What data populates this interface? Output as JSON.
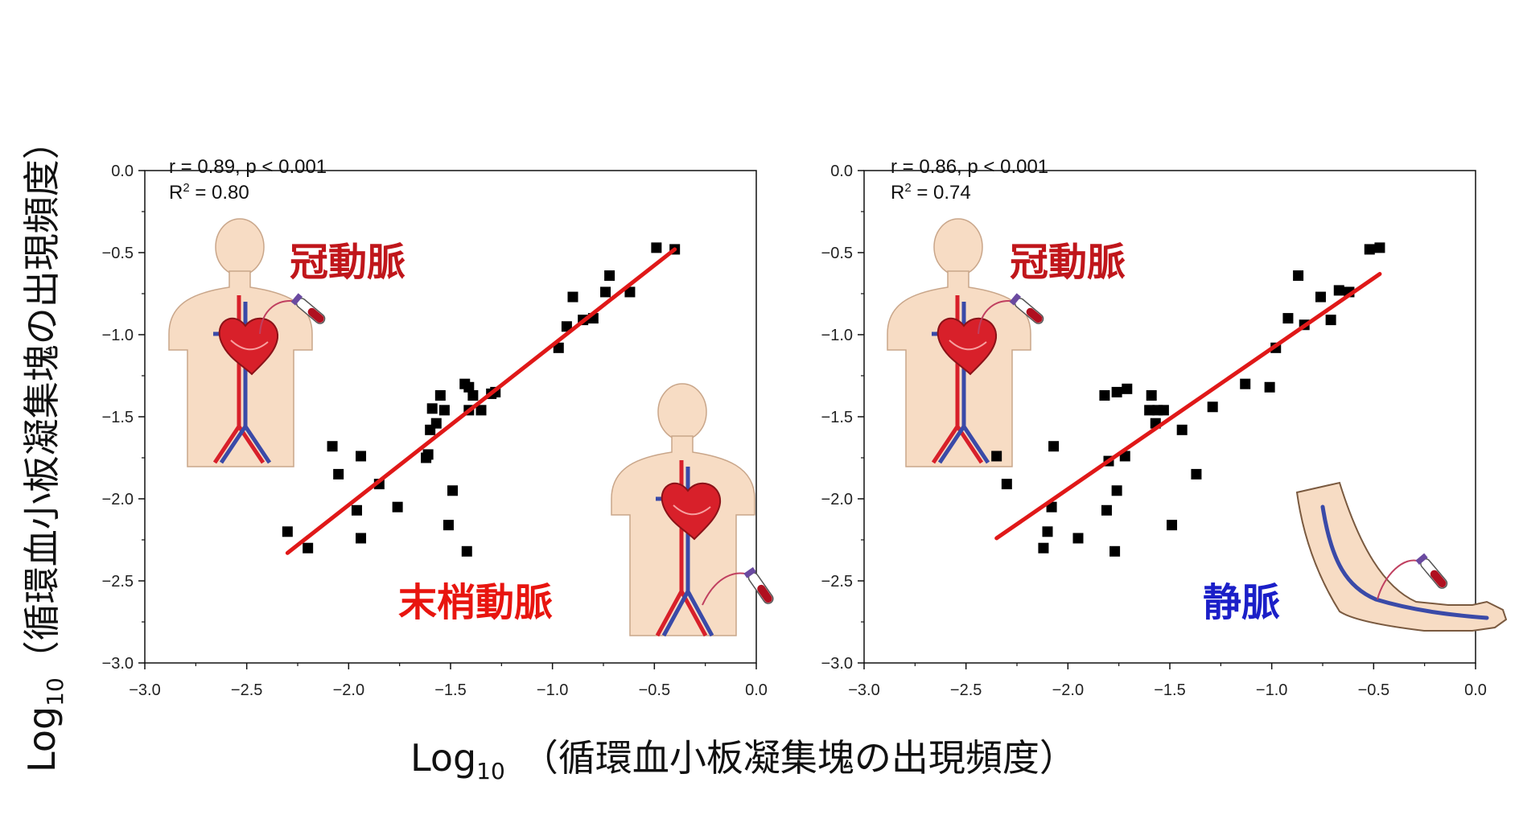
{
  "figure": {
    "xlabel_prefix": "Log",
    "xlabel_sub": "10",
    "xlabel_text": "（循環血小板凝集塊の出現頻度）",
    "ylabel_prefix": "Log",
    "ylabel_sub": "10",
    "ylabel_text": "（循環血小板凝集塊の出現頻度）"
  },
  "colors": {
    "fit_line": "#e01818",
    "points": "#000000",
    "coronary_label": "#c0161b",
    "peripheral_label": "#e8150f",
    "vein_label": "#1b1fc8",
    "skin": "#f7dcc4",
    "artery": "#d8202a",
    "vein": "#3a4aa8"
  },
  "icons": [
    "body-icon",
    "heart-icon",
    "blood-tube-icon",
    "arm-icon"
  ],
  "chart_data": [
    {
      "type": "scatter",
      "xlim": [
        -3.0,
        0.0
      ],
      "ylim": [
        -3.0,
        0.0
      ],
      "x_ticks": [
        "−3.0",
        "−2.5",
        "−2.0",
        "−1.5",
        "−1.0",
        "−0.5",
        "0.0"
      ],
      "y_ticks": [
        "0.0",
        "−0.5",
        "−1.0",
        "−1.5",
        "−2.0",
        "−2.5",
        "−3.0"
      ],
      "stat_r": "r = 0.89, p < 0.001",
      "stat_r2_prefix": "R",
      "stat_r2_sup": "2",
      "stat_r2_value": " = 0.80",
      "labels": [
        {
          "text": "冠動脈",
          "color_key": "coronary_label"
        },
        {
          "text": "末梢動脈",
          "color_key": "peripheral_label"
        }
      ],
      "fit": {
        "x": [
          -2.3,
          -0.4
        ],
        "y": [
          -2.33,
          -0.48
        ]
      },
      "points": [
        [
          -2.3,
          -2.2
        ],
        [
          -2.2,
          -2.3
        ],
        [
          -2.08,
          -1.68
        ],
        [
          -2.05,
          -1.85
        ],
        [
          -1.96,
          -2.07
        ],
        [
          -1.94,
          -1.74
        ],
        [
          -1.94,
          -2.24
        ],
        [
          -1.85,
          -1.91
        ],
        [
          -1.76,
          -2.05
        ],
        [
          -1.62,
          -1.75
        ],
        [
          -1.61,
          -1.73
        ],
        [
          -1.6,
          -1.58
        ],
        [
          -1.59,
          -1.45
        ],
        [
          -1.57,
          -1.54
        ],
        [
          -1.55,
          -1.37
        ],
        [
          -1.53,
          -1.46
        ],
        [
          -1.51,
          -2.16
        ],
        [
          -1.49,
          -1.95
        ],
        [
          -1.43,
          -1.3
        ],
        [
          -1.42,
          -2.32
        ],
        [
          -1.41,
          -1.32
        ],
        [
          -1.41,
          -1.46
        ],
        [
          -1.39,
          -1.37
        ],
        [
          -1.35,
          -1.46
        ],
        [
          -1.3,
          -1.36
        ],
        [
          -1.28,
          -1.35
        ],
        [
          -0.97,
          -1.08
        ],
        [
          -0.93,
          -0.95
        ],
        [
          -0.9,
          -0.77
        ],
        [
          -0.85,
          -0.91
        ],
        [
          -0.8,
          -0.9
        ],
        [
          -0.74,
          -0.74
        ],
        [
          -0.72,
          -0.64
        ],
        [
          -0.62,
          -0.74
        ],
        [
          -0.49,
          -0.47
        ],
        [
          -0.4,
          -0.48
        ]
      ]
    },
    {
      "type": "scatter",
      "xlim": [
        -3.0,
        0.0
      ],
      "ylim": [
        -3.0,
        0.0
      ],
      "x_ticks": [
        "−3.0",
        "−2.5",
        "−2.0",
        "−1.5",
        "−1.0",
        "−0.5",
        "0.0"
      ],
      "y_ticks": [
        "0.0",
        "−0.5",
        "−1.0",
        "−1.5",
        "−2.0",
        "−2.5",
        "−3.0"
      ],
      "stat_r": "r = 0.86, p < 0.001",
      "stat_r2_prefix": "R",
      "stat_r2_sup": "2",
      "stat_r2_value": " = 0.74",
      "labels": [
        {
          "text": "冠動脈",
          "color_key": "coronary_label"
        },
        {
          "text": "静脈",
          "color_key": "vein_label"
        }
      ],
      "fit": {
        "x": [
          -2.35,
          -0.47
        ],
        "y": [
          -2.24,
          -0.63
        ]
      },
      "points": [
        [
          -2.35,
          -1.74
        ],
        [
          -2.3,
          -1.91
        ],
        [
          -2.12,
          -2.3
        ],
        [
          -2.1,
          -2.2
        ],
        [
          -2.08,
          -2.05
        ],
        [
          -2.07,
          -1.68
        ],
        [
          -1.95,
          -2.24
        ],
        [
          -1.82,
          -1.37
        ],
        [
          -1.81,
          -2.07
        ],
        [
          -1.8,
          -1.77
        ],
        [
          -1.77,
          -2.32
        ],
        [
          -1.76,
          -1.95
        ],
        [
          -1.76,
          -1.35
        ],
        [
          -1.72,
          -1.74
        ],
        [
          -1.71,
          -1.33
        ],
        [
          -1.6,
          -1.46
        ],
        [
          -1.59,
          -1.37
        ],
        [
          -1.57,
          -1.54
        ],
        [
          -1.56,
          -1.46
        ],
        [
          -1.53,
          -1.46
        ],
        [
          -1.49,
          -2.16
        ],
        [
          -1.44,
          -1.58
        ],
        [
          -1.37,
          -1.85
        ],
        [
          -1.29,
          -1.44
        ],
        [
          -1.13,
          -1.3
        ],
        [
          -1.01,
          -1.32
        ],
        [
          -0.98,
          -1.08
        ],
        [
          -0.92,
          -0.9
        ],
        [
          -0.87,
          -0.64
        ],
        [
          -0.84,
          -0.94
        ],
        [
          -0.76,
          -0.77
        ],
        [
          -0.71,
          -0.91
        ],
        [
          -0.67,
          -0.73
        ],
        [
          -0.62,
          -0.74
        ],
        [
          -0.52,
          -0.48
        ],
        [
          -0.47,
          -0.47
        ]
      ]
    }
  ]
}
